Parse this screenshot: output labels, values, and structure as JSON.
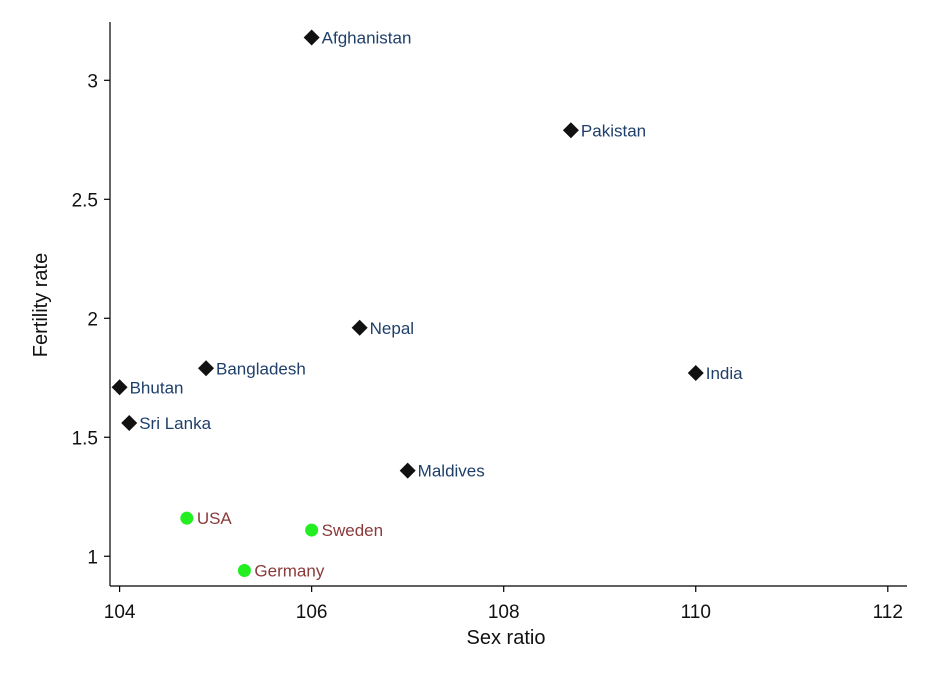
{
  "chart_data": {
    "type": "scatter",
    "xlabel": "Sex ratio",
    "ylabel": "Fertility rate",
    "xlim": [
      103.9,
      112.2
    ],
    "ylim": [
      0.875,
      3.245
    ],
    "xticks": [
      104,
      106,
      108,
      110,
      112
    ],
    "yticks": [
      1,
      1.5,
      2,
      2.5,
      3
    ],
    "ytick_labels": [
      "1",
      "1.5",
      "2",
      "2.5",
      "3"
    ],
    "grid": false,
    "series": [
      {
        "marker": "diamond",
        "color": "#111111",
        "label_color": "#1f3f6b",
        "points": [
          {
            "label": "Afghanistan",
            "x": 106.0,
            "y": 3.18
          },
          {
            "label": "Pakistan",
            "x": 108.7,
            "y": 2.79
          },
          {
            "label": "Nepal",
            "x": 106.5,
            "y": 1.96
          },
          {
            "label": "India",
            "x": 110.0,
            "y": 1.77
          },
          {
            "label": "Bangladesh",
            "x": 104.9,
            "y": 1.79
          },
          {
            "label": "Bhutan",
            "x": 104.0,
            "y": 1.71
          },
          {
            "label": "Sri Lanka",
            "x": 104.1,
            "y": 1.56
          },
          {
            "label": "Maldives",
            "x": 107.0,
            "y": 1.36
          }
        ]
      },
      {
        "marker": "circle",
        "color": "#22ee22",
        "label_color": "#8b3a3a",
        "points": [
          {
            "label": "USA",
            "x": 104.7,
            "y": 1.16
          },
          {
            "label": "Sweden",
            "x": 106.0,
            "y": 1.11
          },
          {
            "label": "Germany",
            "x": 105.3,
            "y": 0.94
          }
        ]
      }
    ]
  }
}
